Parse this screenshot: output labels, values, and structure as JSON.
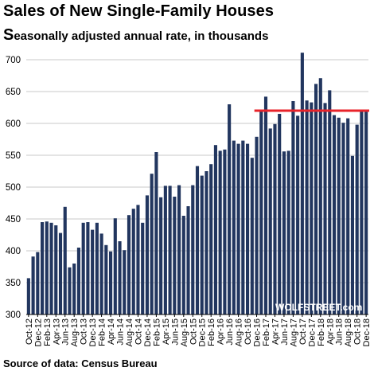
{
  "title": "Sales of New Single-Family Houses",
  "subtitle_initial": "S",
  "subtitle_rest": "easonally adjusted annual rate, in thousands",
  "source": "Source of data: Census Bureau",
  "brand": "WOLFSTREET.com",
  "colors": {
    "bar": "#22365f",
    "reference_line": "#e8232a",
    "grid": "#c8c8c8"
  },
  "chart_data": {
    "type": "bar",
    "title": "Sales of New Single-Family Houses",
    "subtitle": "Seasonally adjusted annual rate, in thousands",
    "ylim": [
      300,
      720
    ],
    "y_ticks": [
      300,
      350,
      400,
      450,
      500,
      550,
      600,
      650,
      700
    ],
    "grid": true,
    "reference_line": 620,
    "categories": [
      "Oct-12",
      "Nov-12",
      "Dec-12",
      "Jan-13",
      "Feb-13",
      "Mar-13",
      "Apr-13",
      "May-13",
      "Jun-13",
      "Jul-13",
      "Aug-13",
      "Sep-13",
      "Oct-13",
      "Nov-13",
      "Dec-13",
      "Jan-14",
      "Feb-14",
      "Mar-14",
      "Apr-14",
      "May-14",
      "Jun-14",
      "Jul-14",
      "Aug-14",
      "Sep-14",
      "Oct-14",
      "Nov-14",
      "Dec-14",
      "Jan-15",
      "Feb-15",
      "Mar-15",
      "Apr-15",
      "May-15",
      "Jun-15",
      "Jul-15",
      "Aug-15",
      "Sep-15",
      "Oct-15",
      "Nov-15",
      "Dec-15",
      "Jan-16",
      "Feb-16",
      "Mar-16",
      "Apr-16",
      "May-16",
      "Jun-16",
      "Jul-16",
      "Aug-16",
      "Sep-16",
      "Oct-16",
      "Nov-16",
      "Dec-16",
      "Jan-17",
      "Feb-17",
      "Mar-17",
      "Apr-17",
      "May-17",
      "Jun-17",
      "Jul-17",
      "Aug-17",
      "Sep-17",
      "Oct-17",
      "Nov-17",
      "Dec-17",
      "Jan-18",
      "Feb-18",
      "Mar-18",
      "Apr-18",
      "May-18",
      "Jun-18",
      "Jul-18",
      "Aug-18",
      "Sep-18",
      "Oct-18",
      "Nov-18",
      "Dec-18"
    ],
    "tick_labels": [
      "Oct-12",
      "Dec-12",
      "Feb-13",
      "Apr-13",
      "Jun-13",
      "Aug-13",
      "Oct-13",
      "Dec-13",
      "Feb-14",
      "Apr-14",
      "Jun-14",
      "Aug-14",
      "Oct-14",
      "Dec-14",
      "Feb-15",
      "Apr-15",
      "Jun-15",
      "Aug-15",
      "Oct-15",
      "Dec-15",
      "Feb-16",
      "Apr-16",
      "Jun-16",
      "Aug-16",
      "Oct-16",
      "Dec-16",
      "Feb-17",
      "Apr-17",
      "Jun-17",
      "Aug-17",
      "Oct-17",
      "Dec-17",
      "Feb-18",
      "Apr-18",
      "Jun-18",
      "Aug-18",
      "Oct-18",
      "Dec-18"
    ],
    "values": [
      357,
      391,
      398,
      445,
      446,
      444,
      440,
      428,
      469,
      374,
      380,
      405,
      444,
      445,
      433,
      444,
      427,
      409,
      399,
      451,
      415,
      401,
      456,
      466,
      472,
      444,
      487,
      521,
      555,
      484,
      502,
      502,
      485,
      503,
      455,
      470,
      503,
      533,
      518,
      525,
      536,
      566,
      557,
      559,
      630,
      573,
      568,
      573,
      568,
      546,
      579,
      620,
      642,
      592,
      599,
      615,
      556,
      557,
      635,
      612,
      711,
      636,
      633,
      662,
      671,
      632,
      652,
      613,
      609,
      601,
      608,
      549,
      598,
      619,
      621
    ]
  }
}
